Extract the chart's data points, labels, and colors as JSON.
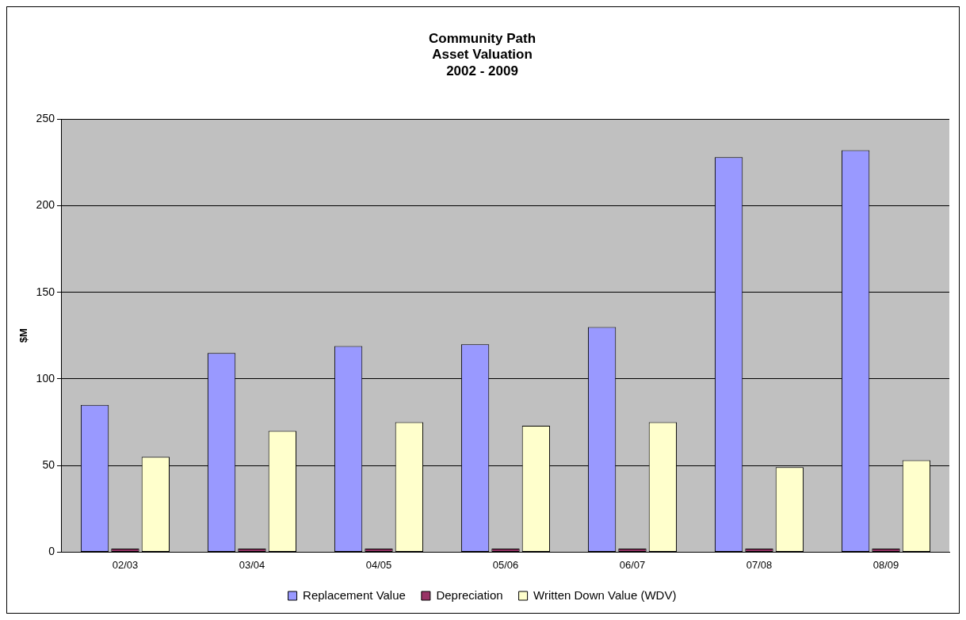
{
  "chart_data": {
    "type": "bar",
    "title": [
      "Community Path",
      "Asset Valuation",
      "2002 - 2009"
    ],
    "ylabel": "$M",
    "categories": [
      "02/03",
      "03/04",
      "04/05",
      "05/06",
      "06/07",
      "07/08",
      "08/09"
    ],
    "series": [
      {
        "name": "Replacement Value",
        "color": "#9999ff",
        "values": [
          85,
          115,
          119,
          120,
          130,
          228,
          232
        ]
      },
      {
        "name": "Depreciation",
        "color": "#993366",
        "values": [
          2,
          2,
          2,
          2,
          2,
          2,
          2
        ]
      },
      {
        "name": "Written Down Value (WDV)",
        "color": "#ffffcc",
        "values": [
          55,
          70,
          75,
          73,
          75,
          49,
          53
        ]
      }
    ],
    "ylim": [
      0,
      250
    ],
    "yticks": [
      0,
      50,
      100,
      150,
      200,
      250
    ],
    "grid": "y",
    "legend": "bottom"
  }
}
